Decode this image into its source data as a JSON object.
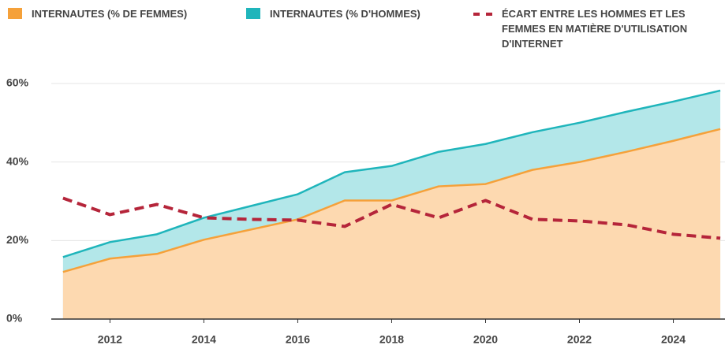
{
  "chart_data": {
    "type": "area",
    "x": [
      2011,
      2012,
      2013,
      2014,
      2015,
      2016,
      2017,
      2018,
      2019,
      2020,
      2021,
      2022,
      2023,
      2024,
      2025
    ],
    "series": [
      {
        "name": "INTERNAUTES (% DE FEMMES)",
        "color": "#f5a13a",
        "fill": "#fdd9b0",
        "values": [
          12,
          15.4,
          16.6,
          20.2,
          22.8,
          25.4,
          30.2,
          30.2,
          33.8,
          34.4,
          38,
          40,
          42.6,
          45.4,
          48.4
        ]
      },
      {
        "name": "INTERNAUTES (% D'HOMMES)",
        "color": "#1fb5bb",
        "fill": "#b3e7e9",
        "values": [
          15.8,
          19.6,
          21.6,
          25.8,
          28.8,
          31.8,
          37.4,
          39,
          42.6,
          44.6,
          47.6,
          50,
          52.8,
          55.4,
          58.2
        ]
      },
      {
        "name": "ÉCART ENTRE LES HOMMES ET LES FEMMES EN MATIÈRE D'UTILISATION D'INTERNET",
        "color": "#b5253a",
        "dashed": true,
        "values": [
          30.8,
          26.6,
          29.2,
          25.8,
          25.4,
          25.2,
          23.6,
          29.2,
          25.8,
          30.2,
          25.4,
          25,
          24,
          21.6,
          20.6
        ]
      }
    ],
    "xlim": [
      2010.75,
      2025.1
    ],
    "xticks": [
      2012,
      2014,
      2016,
      2018,
      2020,
      2022,
      2024
    ],
    "ylim": [
      0,
      60
    ],
    "yticks": [
      {
        "value": 0,
        "label": "0%"
      },
      {
        "value": 20,
        "label": "20%"
      },
      {
        "value": 40,
        "label": "40%"
      },
      {
        "value": 60,
        "label": "60%"
      }
    ],
    "grid": true
  }
}
